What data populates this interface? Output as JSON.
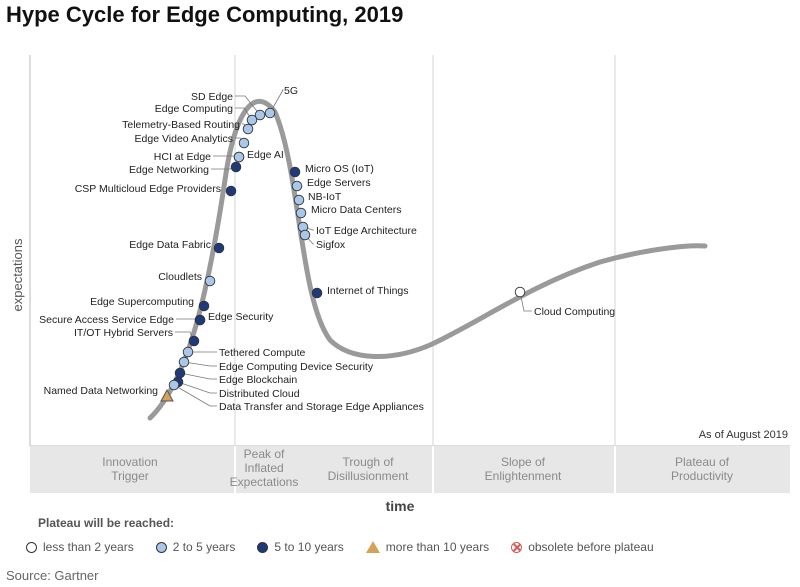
{
  "title": "Hype Cycle for Edge Computing, 2019",
  "axis": {
    "y_label": "expectations",
    "x_label": "time"
  },
  "as_of": "As of August 2019",
  "phases": [
    "Innovation Trigger",
    "Peak of Inflated Expectations",
    "Trough of Disillusionment",
    "Slope of Enlightenment",
    "Plateau of Productivity"
  ],
  "legend": {
    "title": "Plateau will be reached:",
    "items": [
      {
        "label": "less than 2 years",
        "symbol": "circle",
        "color": "#ffffff"
      },
      {
        "label": "2 to 5 years",
        "symbol": "circle",
        "color": "#a9c7e8"
      },
      {
        "label": "5 to 10 years",
        "symbol": "circle",
        "color": "#1f3a7a"
      },
      {
        "label": "more than 10 years",
        "symbol": "triangle",
        "color": "#d4a357"
      },
      {
        "label": "obsolete before plateau",
        "symbol": "x-circle",
        "color": "#d05a5a"
      }
    ]
  },
  "source": "Source: Gartner",
  "colors": {
    "light": "#a9c7e8",
    "dark": "#1f3a7a",
    "white": "#ffffff",
    "orange": "#d4a357",
    "curve": "#9a9a9a",
    "band": "#e7e7e7",
    "phase_text": "#8a8a8a"
  },
  "technologies": [
    {
      "name": "SD Edge",
      "category": "2 to 5 years"
    },
    {
      "name": "5G",
      "category": "2 to 5 years"
    },
    {
      "name": "Edge Computing",
      "category": "2 to 5 years"
    },
    {
      "name": "Telemetry-Based Routing",
      "category": "2 to 5 years"
    },
    {
      "name": "Edge Video Analytics",
      "category": "2 to 5 years"
    },
    {
      "name": "HCI at Edge",
      "category": "2 to 5 years"
    },
    {
      "name": "Edge AI",
      "category": "2 to 5 years"
    },
    {
      "name": "Edge Networking",
      "category": "5 to 10 years"
    },
    {
      "name": "CSP Multicloud Edge Providers",
      "category": "5 to 10 years"
    },
    {
      "name": "Edge Data Fabric",
      "category": "5 to 10 years"
    },
    {
      "name": "Cloudlets",
      "category": "2 to 5 years"
    },
    {
      "name": "Edge Supercomputing",
      "category": "5 to 10 years"
    },
    {
      "name": "Secure Access Service Edge",
      "category": "5 to 10 years"
    },
    {
      "name": "Edge Security",
      "category": "5 to 10 years"
    },
    {
      "name": "IT/OT Hybrid Servers",
      "category": "5 to 10 years"
    },
    {
      "name": "Tethered Compute",
      "category": "2 to 5 years"
    },
    {
      "name": "Edge Computing Device Security",
      "category": "2 to 5 years"
    },
    {
      "name": "Edge Blockchain",
      "category": "5 to 10 years"
    },
    {
      "name": "Distributed Cloud",
      "category": "5 to 10 years"
    },
    {
      "name": "Data Transfer and Storage Edge Appliances",
      "category": "2 to 5 years"
    },
    {
      "name": "Named Data Networking",
      "category": "more than 10 years"
    },
    {
      "name": "Micro OS (IoT)",
      "category": "5 to 10 years"
    },
    {
      "name": "Edge Servers",
      "category": "2 to 5 years"
    },
    {
      "name": "NB-IoT",
      "category": "2 to 5 years"
    },
    {
      "name": "Micro Data Centers",
      "category": "2 to 5 years"
    },
    {
      "name": "IoT Edge Architecture",
      "category": "2 to 5 years"
    },
    {
      "name": "Sigfox",
      "category": "2 to 5 years"
    },
    {
      "name": "Internet of Things",
      "category": "5 to 10 years"
    },
    {
      "name": "Cloud Computing",
      "category": "less than 2 years"
    }
  ]
}
